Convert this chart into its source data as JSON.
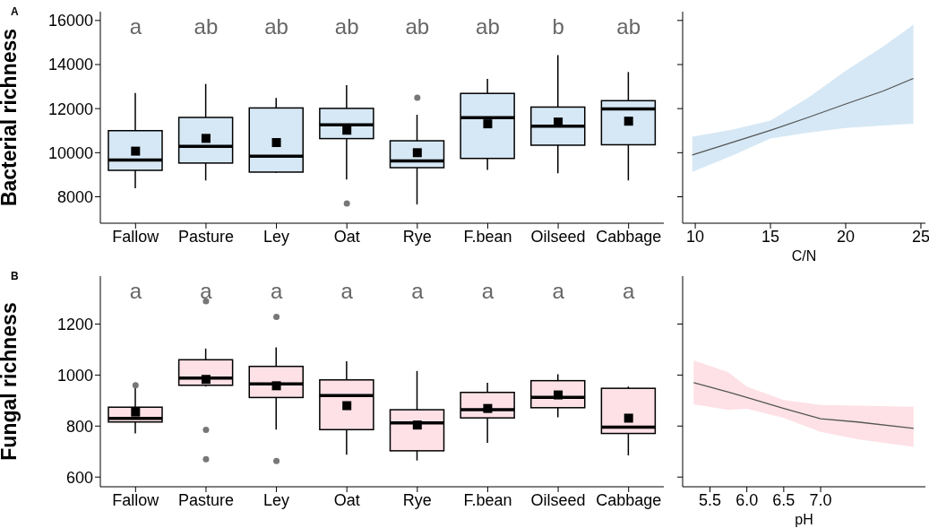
{
  "chart_data": [
    {
      "type": "box",
      "ylabel": "Bacterial richness",
      "categories": [
        "Fallow",
        "Pasture",
        "Ley",
        "Oat",
        "Rye",
        "F.bean",
        "Oilseed",
        "Cabbage"
      ],
      "ylim": [
        6800,
        16400
      ],
      "yticks": [
        8000,
        10000,
        12000,
        14000,
        16000
      ],
      "grid": false,
      "legend": false,
      "series": [
        {
          "color": "#d6e8f5",
          "boxes": [
            {
              "low": 8390,
              "q1": 9200,
              "median": 9670,
              "q3": 11000,
              "high": 12710,
              "mean": 10070
            },
            {
              "low": 8740,
              "q1": 9530,
              "median": 10290,
              "q3": 11600,
              "high": 13120,
              "mean": 10650
            },
            {
              "low": 9090,
              "q1": 9120,
              "median": 9840,
              "q3": 12030,
              "high": 12480,
              "mean": 10460
            },
            {
              "low": 8780,
              "q1": 10640,
              "median": 11260,
              "q3": 12010,
              "high": 13060,
              "mean": 11020,
              "outliers": [
                7690
              ]
            },
            {
              "low": 7650,
              "q1": 9320,
              "median": 9630,
              "q3": 10540,
              "high": 11720,
              "mean": 10000,
              "outliers": [
                12500
              ]
            },
            {
              "low": 9220,
              "q1": 9740,
              "median": 11590,
              "q3": 12690,
              "high": 13350,
              "mean": 11310
            },
            {
              "low": 9070,
              "q1": 10340,
              "median": 11200,
              "q3": 12070,
              "high": 14430,
              "mean": 11390
            },
            {
              "low": 8740,
              "q1": 10360,
              "median": 11990,
              "q3": 12360,
              "high": 13660,
              "mean": 11430
            }
          ]
        }
      ],
      "annotations": [
        "A",
        "a",
        "ab",
        "ab",
        "ab",
        "ab",
        "ab",
        "b",
        "ab"
      ]
    },
    {
      "type": "line",
      "xlabel": "C/N",
      "x": [
        9.8,
        12.5,
        15,
        17.5,
        20,
        22.5,
        24.5
      ],
      "xlim": [
        9.16,
        25.3
      ],
      "xticks": [
        10,
        15,
        20,
        25
      ],
      "ylim": [
        6800,
        16400
      ],
      "yticks": [
        8000,
        10000,
        12000,
        14000,
        16000
      ],
      "tick_labels": "x",
      "grid": false,
      "legend": false,
      "marker": "none",
      "series": [
        {
          "color": "#555555",
          "values": [
            9900,
            10480,
            11020,
            11600,
            12210,
            12800,
            13370
          ],
          "lower": [
            9130,
            9880,
            10640,
            10910,
            11120,
            11230,
            11320
          ],
          "upper": [
            10730,
            11050,
            11460,
            12490,
            13720,
            14820,
            15810
          ]
        }
      ]
    },
    {
      "type": "box",
      "ylabel": "Fungal richness",
      "categories": [
        "Fallow",
        "Pasture",
        "Ley",
        "Oat",
        "Rye",
        "F.bean",
        "Oilseed",
        "Cabbage"
      ],
      "ylim": [
        562,
        1388
      ],
      "yticks": [
        600,
        800,
        1000,
        1200
      ],
      "grid": false,
      "legend": false,
      "series": [
        {
          "color": "#fde1e6",
          "boxes": [
            {
              "low": 771,
              "q1": 816,
              "median": 830,
              "q3": 874,
              "high": 950,
              "mean": 855,
              "outliers": [
                960
              ]
            },
            {
              "low": 955,
              "q1": 960,
              "median": 988,
              "q3": 1060,
              "high": 1104,
              "mean": 983,
              "outliers": [
                1290,
                785,
                670
              ]
            },
            {
              "low": 786,
              "q1": 912,
              "median": 965,
              "q3": 1034,
              "high": 1109,
              "mean": 958,
              "outliers": [
                1228,
                663
              ]
            },
            {
              "low": 688,
              "q1": 786,
              "median": 920,
              "q3": 981,
              "high": 1054,
              "mean": 880
            },
            {
              "low": 665,
              "q1": 703,
              "median": 812,
              "q3": 864,
              "high": 1016,
              "mean": 804
            },
            {
              "low": 734,
              "q1": 832,
              "median": 864,
              "q3": 932,
              "high": 970,
              "mean": 869
            },
            {
              "low": 834,
              "q1": 872,
              "median": 913,
              "q3": 978,
              "high": 1003,
              "mean": 922
            },
            {
              "low": 685,
              "q1": 771,
              "median": 796,
              "q3": 948,
              "high": 955,
              "mean": 831
            }
          ]
        }
      ],
      "annotations": [
        "B",
        "a",
        "a",
        "a",
        "a",
        "a",
        "a",
        "a",
        "a"
      ]
    },
    {
      "type": "line",
      "xlabel": "pH",
      "x": [
        5.28,
        5.75,
        6.0,
        6.5,
        7.0,
        7.5,
        8.26
      ],
      "xlim": [
        5.13,
        8.42
      ],
      "xticks": [
        5.5,
        {
          "value": 6,
          "label": "6.0"
        },
        6.5,
        {
          "value": 7,
          "label": "7.0"
        }
      ],
      "ylim": [
        562,
        1388
      ],
      "yticks": [
        600,
        800,
        1000,
        1200
      ],
      "tick_labels": "x",
      "grid": false,
      "legend": false,
      "marker": "none",
      "series": [
        {
          "color": "#555555",
          "values": [
            970,
            933,
            912,
            869,
            829,
            816,
            791
          ],
          "lower": [
            885,
            863,
            868,
            832,
            777,
            748,
            718
          ],
          "upper": [
            1058,
            1011,
            955,
            902,
            883,
            880,
            876
          ]
        }
      ]
    }
  ]
}
